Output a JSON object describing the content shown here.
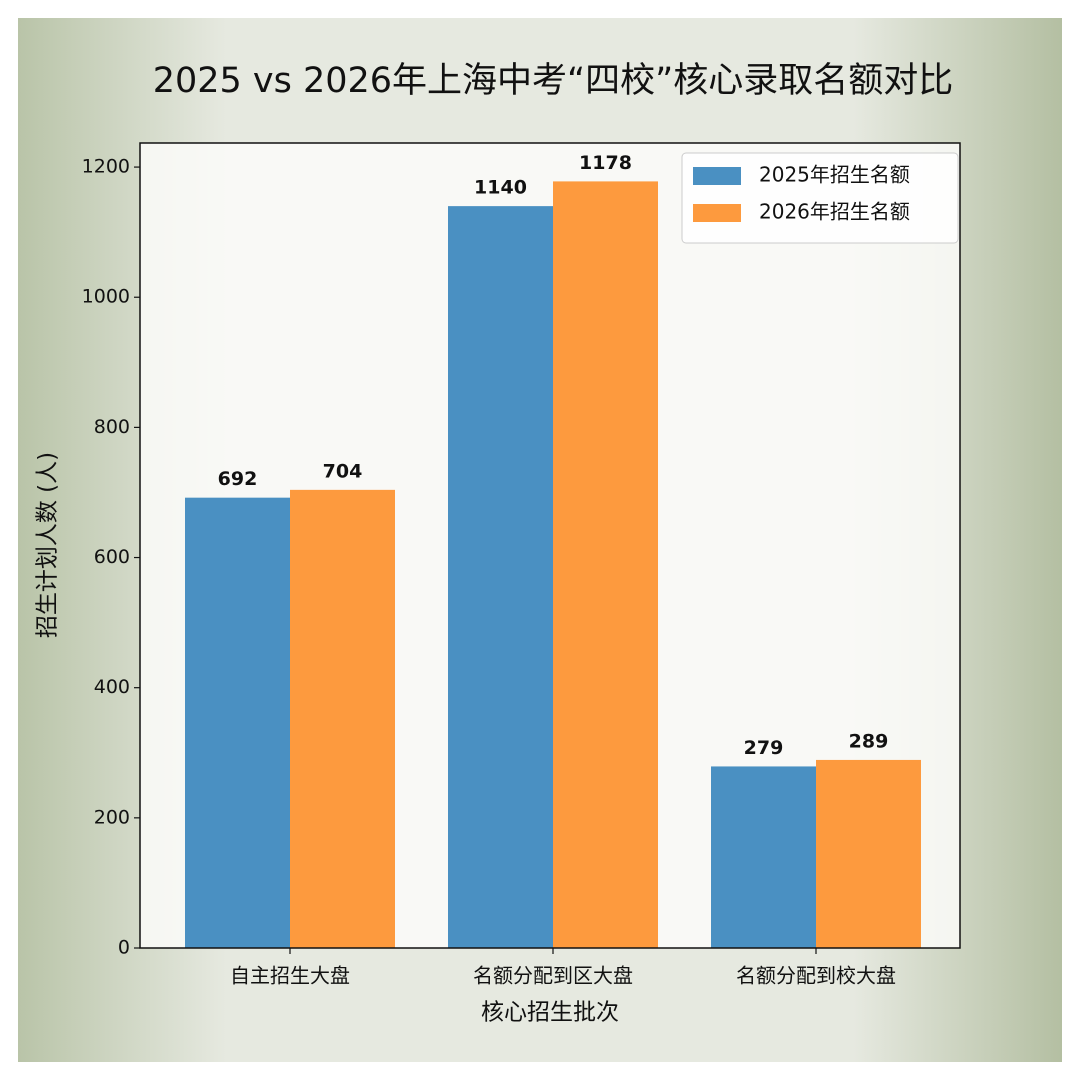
{
  "chart_data": {
    "type": "bar",
    "title": "2025 vs 2026年上海中考“四校”核心录取名额对比",
    "x_label": "核心招生批次",
    "y_label": "招生计划人数 (人)",
    "categories": [
      "自主招生大盘",
      "名额分配到区大盘",
      "名额分配到校大盘"
    ],
    "series": [
      {
        "name": "2025年招生名额",
        "color": "#4a90c2",
        "values": [
          692,
          1140,
          279
        ]
      },
      {
        "name": "2026年招生名额",
        "color": "#fd9a3e",
        "values": [
          704,
          1178,
          289
        ]
      }
    ],
    "ylim": [
      0,
      1237
    ],
    "yticks": [
      0,
      200,
      400,
      600,
      800,
      1000,
      1200
    ],
    "legend": "upper right",
    "grid": false
  }
}
